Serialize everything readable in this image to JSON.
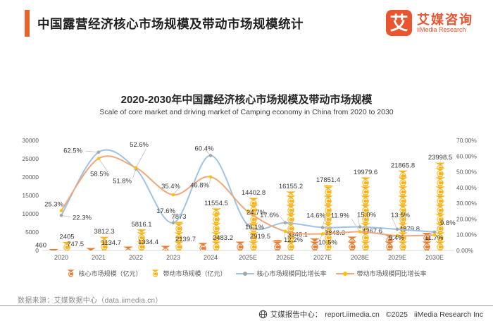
{
  "header": {
    "title": "中国露营经济核心市场规模及带动市场规模统计",
    "logo": {
      "badge": "艾",
      "name_cn": "艾媒咨询",
      "name_en": "iiMedia Research"
    }
  },
  "colors": {
    "accent_orange": "#E8642C",
    "core_bar": "#E87D31",
    "driving_bar": "#FBB216",
    "core_line": "#9DC3E6",
    "core_marker": "#A6A6A6",
    "driving_line": "#EFA77C",
    "driving_marker": "#FFC000"
  },
  "chart_data": {
    "type": "combo",
    "title": "2020-2030年中国露经济核心市场规模及带动市场规模",
    "subtitle": "Scale of core market and driving market of Camping economy in China from 2020 to 2030",
    "categories": [
      "2020",
      "2021",
      "2022",
      "2023",
      "2024",
      "2025E",
      "2026E",
      "2027E",
      "2028E",
      "2029E",
      "2030E"
    ],
    "series": [
      {
        "name": "核心市场规模（亿元）",
        "type": "pictogram_bar",
        "axis": "left",
        "color": "#E87D31",
        "values": [
          460,
          747.5,
          1134.7,
          1334.4,
          2139.7,
          2483.2,
          2919.5,
          3346.1,
          3848.3,
          4367.6,
          4879.8
        ],
        "labels": [
          "460",
          "747.5",
          "1134.7",
          "1334.4",
          "2139.7",
          "2483.2",
          "2919.5",
          "3346.1",
          "3848.3",
          "4367.6",
          "4879.8"
        ]
      },
      {
        "name": "带动市场规模（亿元）",
        "type": "pictogram_bar",
        "axis": "left",
        "color": "#FBB216",
        "values": [
          2405,
          3812.3,
          5816.1,
          7873,
          11554.5,
          14402.8,
          16155.2,
          17851.4,
          19979.6,
          21865.8,
          23998.5
        ],
        "labels": [
          "2405",
          "3812.3",
          "5816.1",
          "7873",
          "11554.5",
          "14402.8",
          "16155.2",
          "17851.4",
          "19979.6",
          "21865.8",
          "23998.5"
        ]
      },
      {
        "name": "核心市场规模同比增长率",
        "type": "line",
        "axis": "right",
        "color": "#9DC3E6",
        "marker_color": "#A6A6A6",
        "values": [
          22.3,
          62.5,
          51.8,
          17.6,
          60.4,
          16.1,
          17.6,
          14.6,
          15.0,
          13.5,
          11.7
        ],
        "labels": [
          "22.3%",
          "62.5%",
          "51.8%",
          "17.6%",
          "60.4%",
          "16.1%",
          "17.6%",
          "14.6%",
          "15.0%",
          "13.5%",
          "11.7%"
        ]
      },
      {
        "name": "带动市场规模同比增长率",
        "type": "line",
        "axis": "right",
        "color": "#EFA77C",
        "marker_color": "#FFC000",
        "values": [
          25.3,
          58.5,
          52.6,
          35.4,
          46.8,
          24.7,
          12.2,
          10.5,
          11.9,
          9.4,
          9.8
        ],
        "labels": [
          "25.3%",
          "58.5%",
          "52.6%",
          "35.4%",
          "46.8%",
          "24.7%",
          "12.2%",
          "10.5%",
          "11.9%",
          "9.4%",
          "9.8%"
        ]
      }
    ],
    "left_axis": {
      "min": 0,
      "max": 30000,
      "ticks": [
        "0",
        "5000",
        "10000",
        "15000",
        "20000",
        "25000",
        "30000"
      ]
    },
    "right_axis": {
      "min": 0,
      "max": 70,
      "ticks": [
        "0.00%",
        "10.00%",
        "20.00%",
        "30.00%",
        "40.00%",
        "50.00%",
        "60.00%",
        "70.00%"
      ]
    },
    "icon_unit": 2500,
    "grid": false,
    "legend_position": "bottom",
    "label_offsets": {
      "core_growth": [
        [
          16,
          3,
          "start"
        ],
        [
          -23,
          -2,
          "end"
        ],
        [
          -6,
          17,
          "end"
        ],
        [
          3,
          -17,
          "end"
        ],
        [
          -9,
          -10,
          "middle"
        ],
        [
          -4,
          3,
          "start"
        ],
        [
          -9,
          -11,
          "end"
        ],
        [
          4,
          -17,
          "end"
        ],
        [
          -4,
          -17,
          "start"
        ],
        [
          -9,
          -20,
          "start"
        ],
        [
          -14,
          8,
          "start"
        ]
      ],
      "driving_growth": [
        [
          3,
          -9,
          "end"
        ],
        [
          15,
          22,
          "end"
        ],
        [
          18,
          -33,
          "end"
        ],
        [
          10,
          -12,
          "end"
        ],
        [
          -2,
          12,
          "end"
        ],
        [
          -2,
          1,
          "start"
        ],
        [
          -2,
          12,
          "start"
        ],
        [
          -6,
          12,
          "start"
        ],
        [
          -15,
          -23,
          "end"
        ],
        [
          -12,
          3,
          "start"
        ],
        [
          8,
          -17,
          "start"
        ]
      ]
    }
  },
  "footer": {
    "source": "数据来源：艾媒数据中心（data.iimedia.cn）",
    "report_label": "艾媒报告中心：",
    "report_url": "report.iimedia.cn",
    "copyright": "©2025",
    "company": "iiMedia Research Inc"
  }
}
